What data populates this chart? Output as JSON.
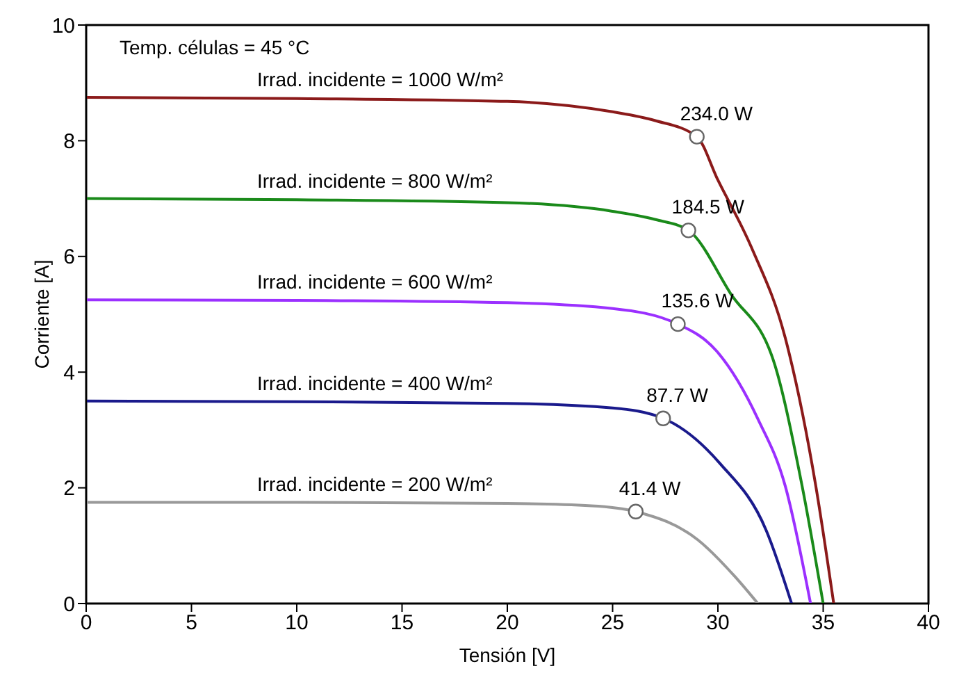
{
  "chart_data": {
    "type": "line",
    "xlabel": "Tensión [V]",
    "ylabel": "Corriente [A]",
    "xlim": [
      0,
      40
    ],
    "xticks": [
      0,
      5,
      10,
      15,
      20,
      25,
      30,
      35,
      40
    ],
    "ylim": [
      0,
      10
    ],
    "yticks": [
      0,
      2,
      4,
      6,
      8,
      10
    ],
    "grid": false,
    "legend": false,
    "marker": "none",
    "line_style": "solid",
    "series": [
      {
        "name": "Irrad. incidente = 1000 W/m²",
        "color": "#8b1a1a",
        "x": [
          0,
          10,
          20,
          25,
          27,
          29,
          30,
          31.6,
          33.2,
          34.65,
          35.5
        ],
        "values": [
          8.75,
          8.73,
          8.68,
          8.5,
          8.35,
          8.07,
          7.32,
          6.15,
          4.59,
          2.03,
          0
        ]
      },
      {
        "name": "Irrad. incidente = 800 W/m²",
        "color": "#1a8a1a",
        "x": [
          0,
          10,
          20,
          25,
          27,
          28.6,
          30.6,
          32.7,
          34.0,
          35.0
        ],
        "values": [
          7.0,
          6.98,
          6.93,
          6.78,
          6.64,
          6.45,
          5.36,
          4.13,
          2.03,
          0
        ]
      },
      {
        "name": "Irrad. incidente = 600 W/m²",
        "color": "#9b30ff",
        "x": [
          0,
          10,
          20,
          25,
          28.1,
          29.95,
          31.9,
          33.2,
          34.4
        ],
        "values": [
          5.25,
          5.24,
          5.2,
          5.1,
          4.83,
          4.36,
          3.19,
          2.03,
          0
        ]
      },
      {
        "name": "Irrad. incidente = 400 W/m²",
        "color": "#1a1a8c",
        "x": [
          0,
          10,
          20,
          25,
          27.4,
          30.1,
          32.3,
          33.5
        ],
        "values": [
          3.5,
          3.49,
          3.46,
          3.38,
          3.2,
          2.42,
          1.26,
          0
        ]
      },
      {
        "name": "Irrad. incidente = 200 W/m²",
        "color": "#999999",
        "x": [
          0,
          10,
          20,
          24,
          26.1,
          29.05,
          30.8,
          31.9
        ],
        "values": [
          1.75,
          1.75,
          1.73,
          1.69,
          1.59,
          1.1,
          0.47,
          0
        ]
      }
    ],
    "annotations": [
      "Temp. células = 45 °C",
      {
        "text": "234.0 W",
        "x": 29,
        "y": 8.07
      },
      {
        "text": "184.5 W",
        "x": 28.6,
        "y": 6.45
      },
      {
        "text": "135.6 W",
        "x": 28.1,
        "y": 4.83
      },
      {
        "text": "87.7 W",
        "x": 27.4,
        "y": 3.2
      },
      {
        "text": "41.4 W",
        "x": 26.1,
        "y": 1.59
      }
    ]
  }
}
